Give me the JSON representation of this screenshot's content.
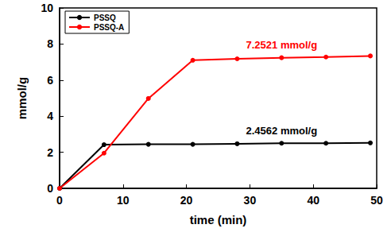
{
  "chart_data": {
    "type": "line",
    "x_label": "time (min)",
    "y_label": "mmol/g",
    "x": [
      0,
      7,
      14,
      21,
      28,
      35,
      42,
      49
    ],
    "series": [
      {
        "name": "PSSQ",
        "color": "#000000",
        "marker": "circle",
        "values": [
          0,
          2.42,
          2.44,
          2.44,
          2.47,
          2.5,
          2.5,
          2.52
        ]
      },
      {
        "name": "PSSQ-A",
        "color": "#ff0000",
        "marker": "circle",
        "values": [
          0,
          1.95,
          4.98,
          7.1,
          7.18,
          7.24,
          7.28,
          7.34
        ]
      }
    ],
    "annotations": [
      {
        "text": "7.2521 mmol/g",
        "series": "PSSQ-A"
      },
      {
        "text": "2.4562 mmol/g",
        "series": "PSSQ"
      }
    ],
    "xlim": [
      0,
      50
    ],
    "xticks": [
      0,
      10,
      20,
      30,
      40,
      50
    ],
    "ylim": [
      0,
      10
    ],
    "yticks": [
      0,
      2,
      4,
      6,
      8,
      10
    ],
    "grid": false,
    "legend": "upper left"
  }
}
